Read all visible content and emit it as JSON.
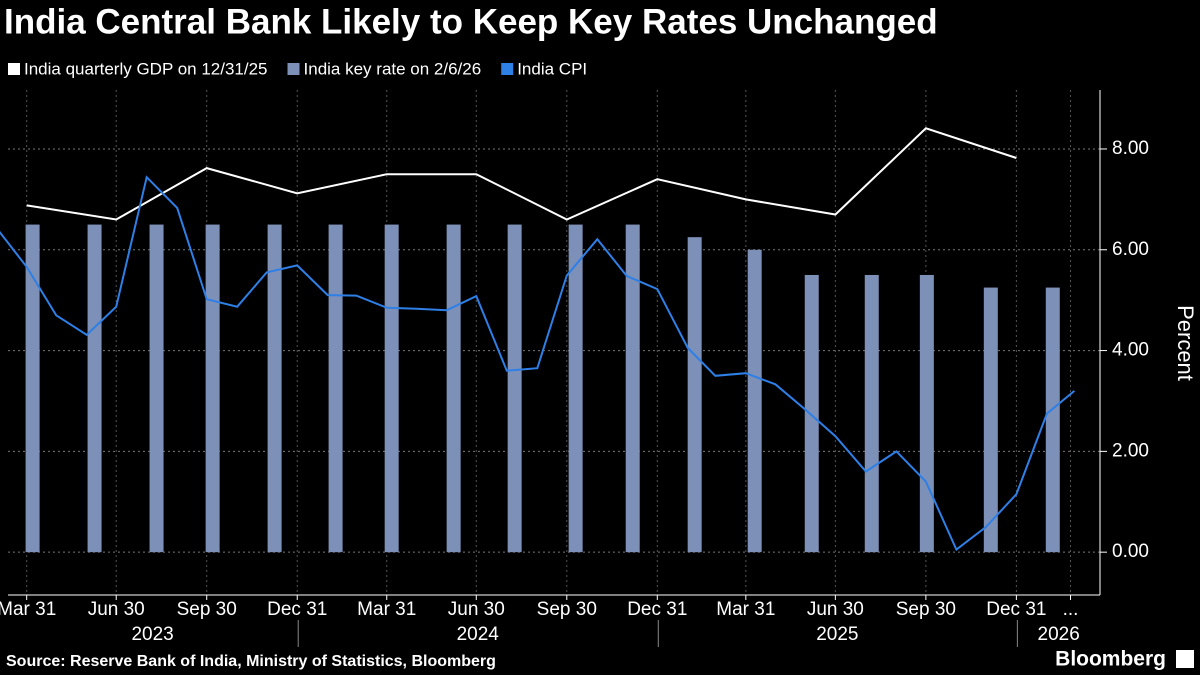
{
  "chart_data": {
    "type": "combo",
    "title": "India Central Bank Likely to Keep Key Rates Unchanged",
    "y_label": "Percent",
    "source": "Source: Reserve Bank of India, Ministry of Statistics, Bloomberg",
    "brand": "Bloomberg",
    "xlim": [
      "2023-03-12",
      "2026-03-26"
    ],
    "xticks": [
      {
        "value": "2023-03-31",
        "label": "Mar 31"
      },
      {
        "value": "2023-06-30",
        "label": "Jun 30"
      },
      {
        "value": "2023-09-30",
        "label": "Sep 30"
      },
      {
        "value": "2023-12-31",
        "label": "Dec 31"
      },
      {
        "value": "2024-03-31",
        "label": "Mar 31"
      },
      {
        "value": "2024-06-30",
        "label": "Jun 30"
      },
      {
        "value": "2024-09-30",
        "label": "Sep 30"
      },
      {
        "value": "2024-12-31",
        "label": "Dec 31"
      },
      {
        "value": "2025-03-31",
        "label": "Mar 31"
      },
      {
        "value": "2025-06-30",
        "label": "Jun 30"
      },
      {
        "value": "2025-09-30",
        "label": "Sep 30"
      },
      {
        "value": "2025-12-31",
        "label": "Dec 31"
      },
      {
        "value": "2026-02-24",
        "label": "..."
      }
    ],
    "year_labels": [
      "2023",
      "2024",
      "2025",
      "2026"
    ],
    "ylim": [
      -0.85,
      9.17
    ],
    "yticks": [
      {
        "value": 0,
        "label": "0.00"
      },
      {
        "value": 2,
        "label": "2.00"
      },
      {
        "value": 4,
        "label": "4.00"
      },
      {
        "value": 6,
        "label": "6.00"
      },
      {
        "value": 8,
        "label": "8.00"
      }
    ],
    "grid": true,
    "series": [
      {
        "name": "India quarterly GDP on 12/31/25",
        "type": "line",
        "color": "#ffffff",
        "x": [
          "2023-03-31",
          "2023-06-30",
          "2023-09-30",
          "2023-12-31",
          "2024-03-31",
          "2024-06-30",
          "2024-09-30",
          "2024-12-31",
          "2025-03-31",
          "2025-06-30",
          "2025-09-30",
          "2025-12-31"
        ],
        "values": [
          6.88,
          6.6,
          7.62,
          7.12,
          7.5,
          7.5,
          6.6,
          7.4,
          7.0,
          6.7,
          8.41,
          7.82
        ]
      },
      {
        "name": "India key rate on 2/6/26",
        "type": "bar",
        "color": "#7d90b8",
        "x": [
          "2023-04-06",
          "2023-06-08",
          "2023-08-10",
          "2023-10-06",
          "2023-12-08",
          "2024-02-08",
          "2024-04-05",
          "2024-06-07",
          "2024-08-08",
          "2024-10-09",
          "2024-12-06",
          "2025-02-07",
          "2025-04-09",
          "2025-06-06",
          "2025-08-06",
          "2025-10-01",
          "2025-12-05",
          "2026-02-06"
        ],
        "values": [
          6.5,
          6.5,
          6.5,
          6.5,
          6.5,
          6.5,
          6.5,
          6.5,
          6.5,
          6.5,
          6.5,
          6.25,
          6.0,
          5.5,
          5.5,
          5.5,
          5.25,
          5.25
        ]
      },
      {
        "name": "India CPI",
        "type": "line",
        "color": "#2e7fe6",
        "x": [
          "2023-02-28",
          "2023-03-31",
          "2023-04-30",
          "2023-05-31",
          "2023-06-30",
          "2023-07-31",
          "2023-08-31",
          "2023-09-30",
          "2023-10-31",
          "2023-11-30",
          "2023-12-31",
          "2024-01-31",
          "2024-02-29",
          "2024-03-31",
          "2024-04-30",
          "2024-05-31",
          "2024-06-30",
          "2024-07-31",
          "2024-08-31",
          "2024-09-30",
          "2024-10-31",
          "2024-11-30",
          "2024-12-31",
          "2025-01-31",
          "2025-02-28",
          "2025-03-31",
          "2025-04-30",
          "2025-05-31",
          "2025-06-30",
          "2025-07-31",
          "2025-08-31",
          "2025-09-30",
          "2025-10-31",
          "2025-11-30",
          "2025-12-31",
          "2026-01-31",
          "2026-02-28"
        ],
        "values": [
          6.44,
          5.66,
          4.7,
          4.31,
          4.87,
          7.44,
          6.83,
          5.02,
          4.87,
          5.55,
          5.69,
          5.1,
          5.09,
          4.85,
          4.83,
          4.8,
          5.08,
          3.6,
          3.65,
          5.49,
          6.21,
          5.48,
          5.22,
          4.05,
          3.5,
          3.55,
          3.33,
          2.82,
          2.3,
          1.6,
          2.0,
          1.4,
          0.05,
          0.5,
          1.15,
          2.75,
          3.2
        ]
      }
    ]
  }
}
